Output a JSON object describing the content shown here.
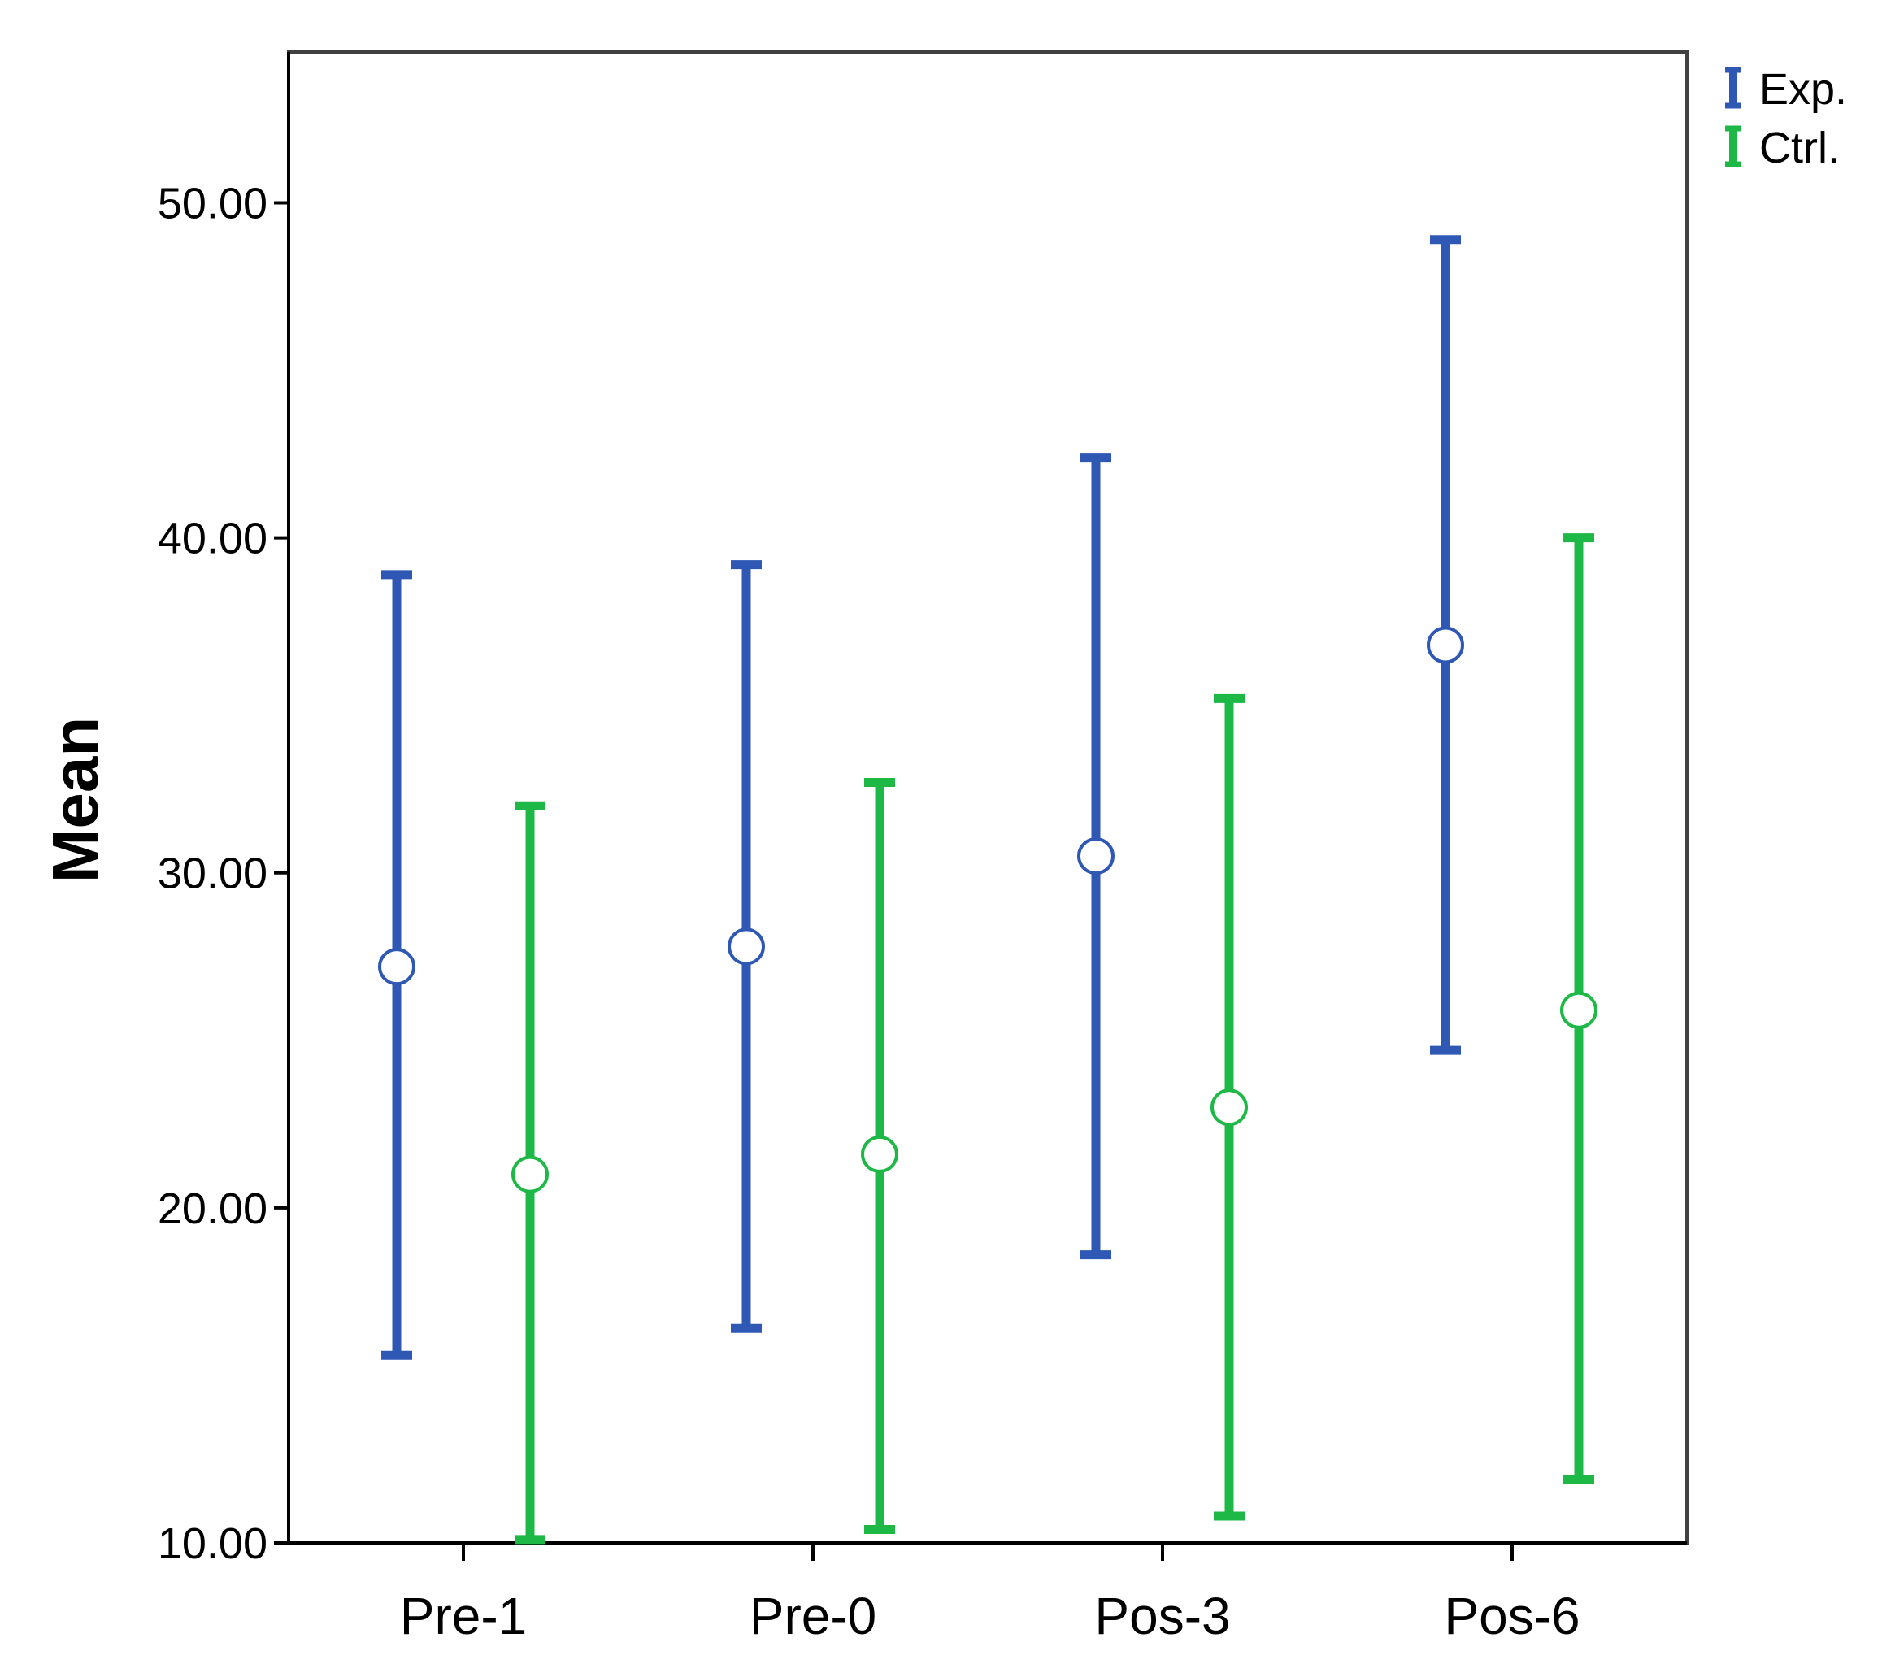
{
  "chart_data": {
    "type": "errorbar",
    "title": "",
    "xlabel": "",
    "ylabel": "Mean",
    "ylim": [
      10,
      54.5
    ],
    "yticks": [
      "10.00",
      "20.00",
      "30.00",
      "40.00",
      "50.00"
    ],
    "categories": [
      "Pre-1",
      "Pre-0",
      "Pos-3",
      "Pos-6"
    ],
    "legend_position": "top-right",
    "grid": false,
    "series": [
      {
        "name": "Exp.",
        "color": "#2f58b5",
        "mean": [
          27.2,
          27.8,
          30.5,
          36.8
        ],
        "lower": [
          15.6,
          16.4,
          18.6,
          24.7
        ],
        "upper": [
          38.9,
          39.2,
          42.4,
          48.9
        ]
      },
      {
        "name": "Ctrl.",
        "color": "#1db845",
        "mean": [
          21.0,
          21.6,
          23.0,
          25.9
        ],
        "lower": [
          10.1,
          10.4,
          10.8,
          11.9
        ],
        "upper": [
          32.0,
          32.7,
          35.2,
          40.0
        ]
      }
    ]
  }
}
